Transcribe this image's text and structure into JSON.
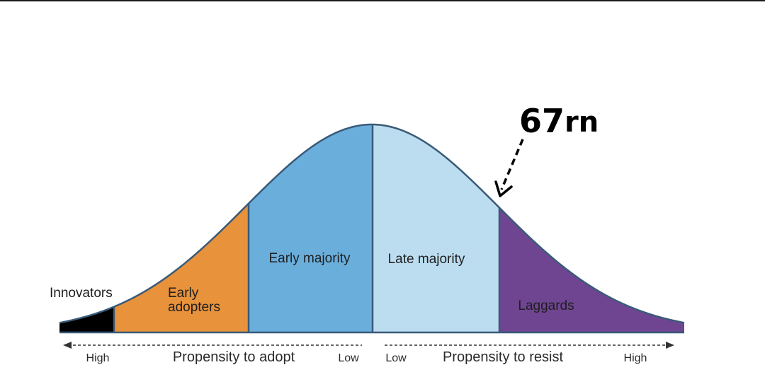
{
  "segments": [
    {
      "key": "innovators",
      "label": "Innovators",
      "color": "#000000"
    },
    {
      "key": "early_adopters",
      "label_lines": [
        "Early",
        "adopters"
      ],
      "color": "#E8923C"
    },
    {
      "key": "early_majority",
      "label": "Early majority",
      "color": "#6AAEDC"
    },
    {
      "key": "late_majority",
      "label": "Late majority",
      "color": "#BCDDF0"
    },
    {
      "key": "laggards",
      "label": "Laggards",
      "color": "#6F4592"
    }
  ],
  "outline_color": "#3A5A78",
  "axis": {
    "left": {
      "high": "High",
      "title": "Propensity to adopt",
      "low": "Low"
    },
    "right": {
      "low": "Low",
      "title": "Propensity to resist",
      "high": "High"
    }
  },
  "annotation": {
    "number": "67",
    "text": "rn"
  }
}
